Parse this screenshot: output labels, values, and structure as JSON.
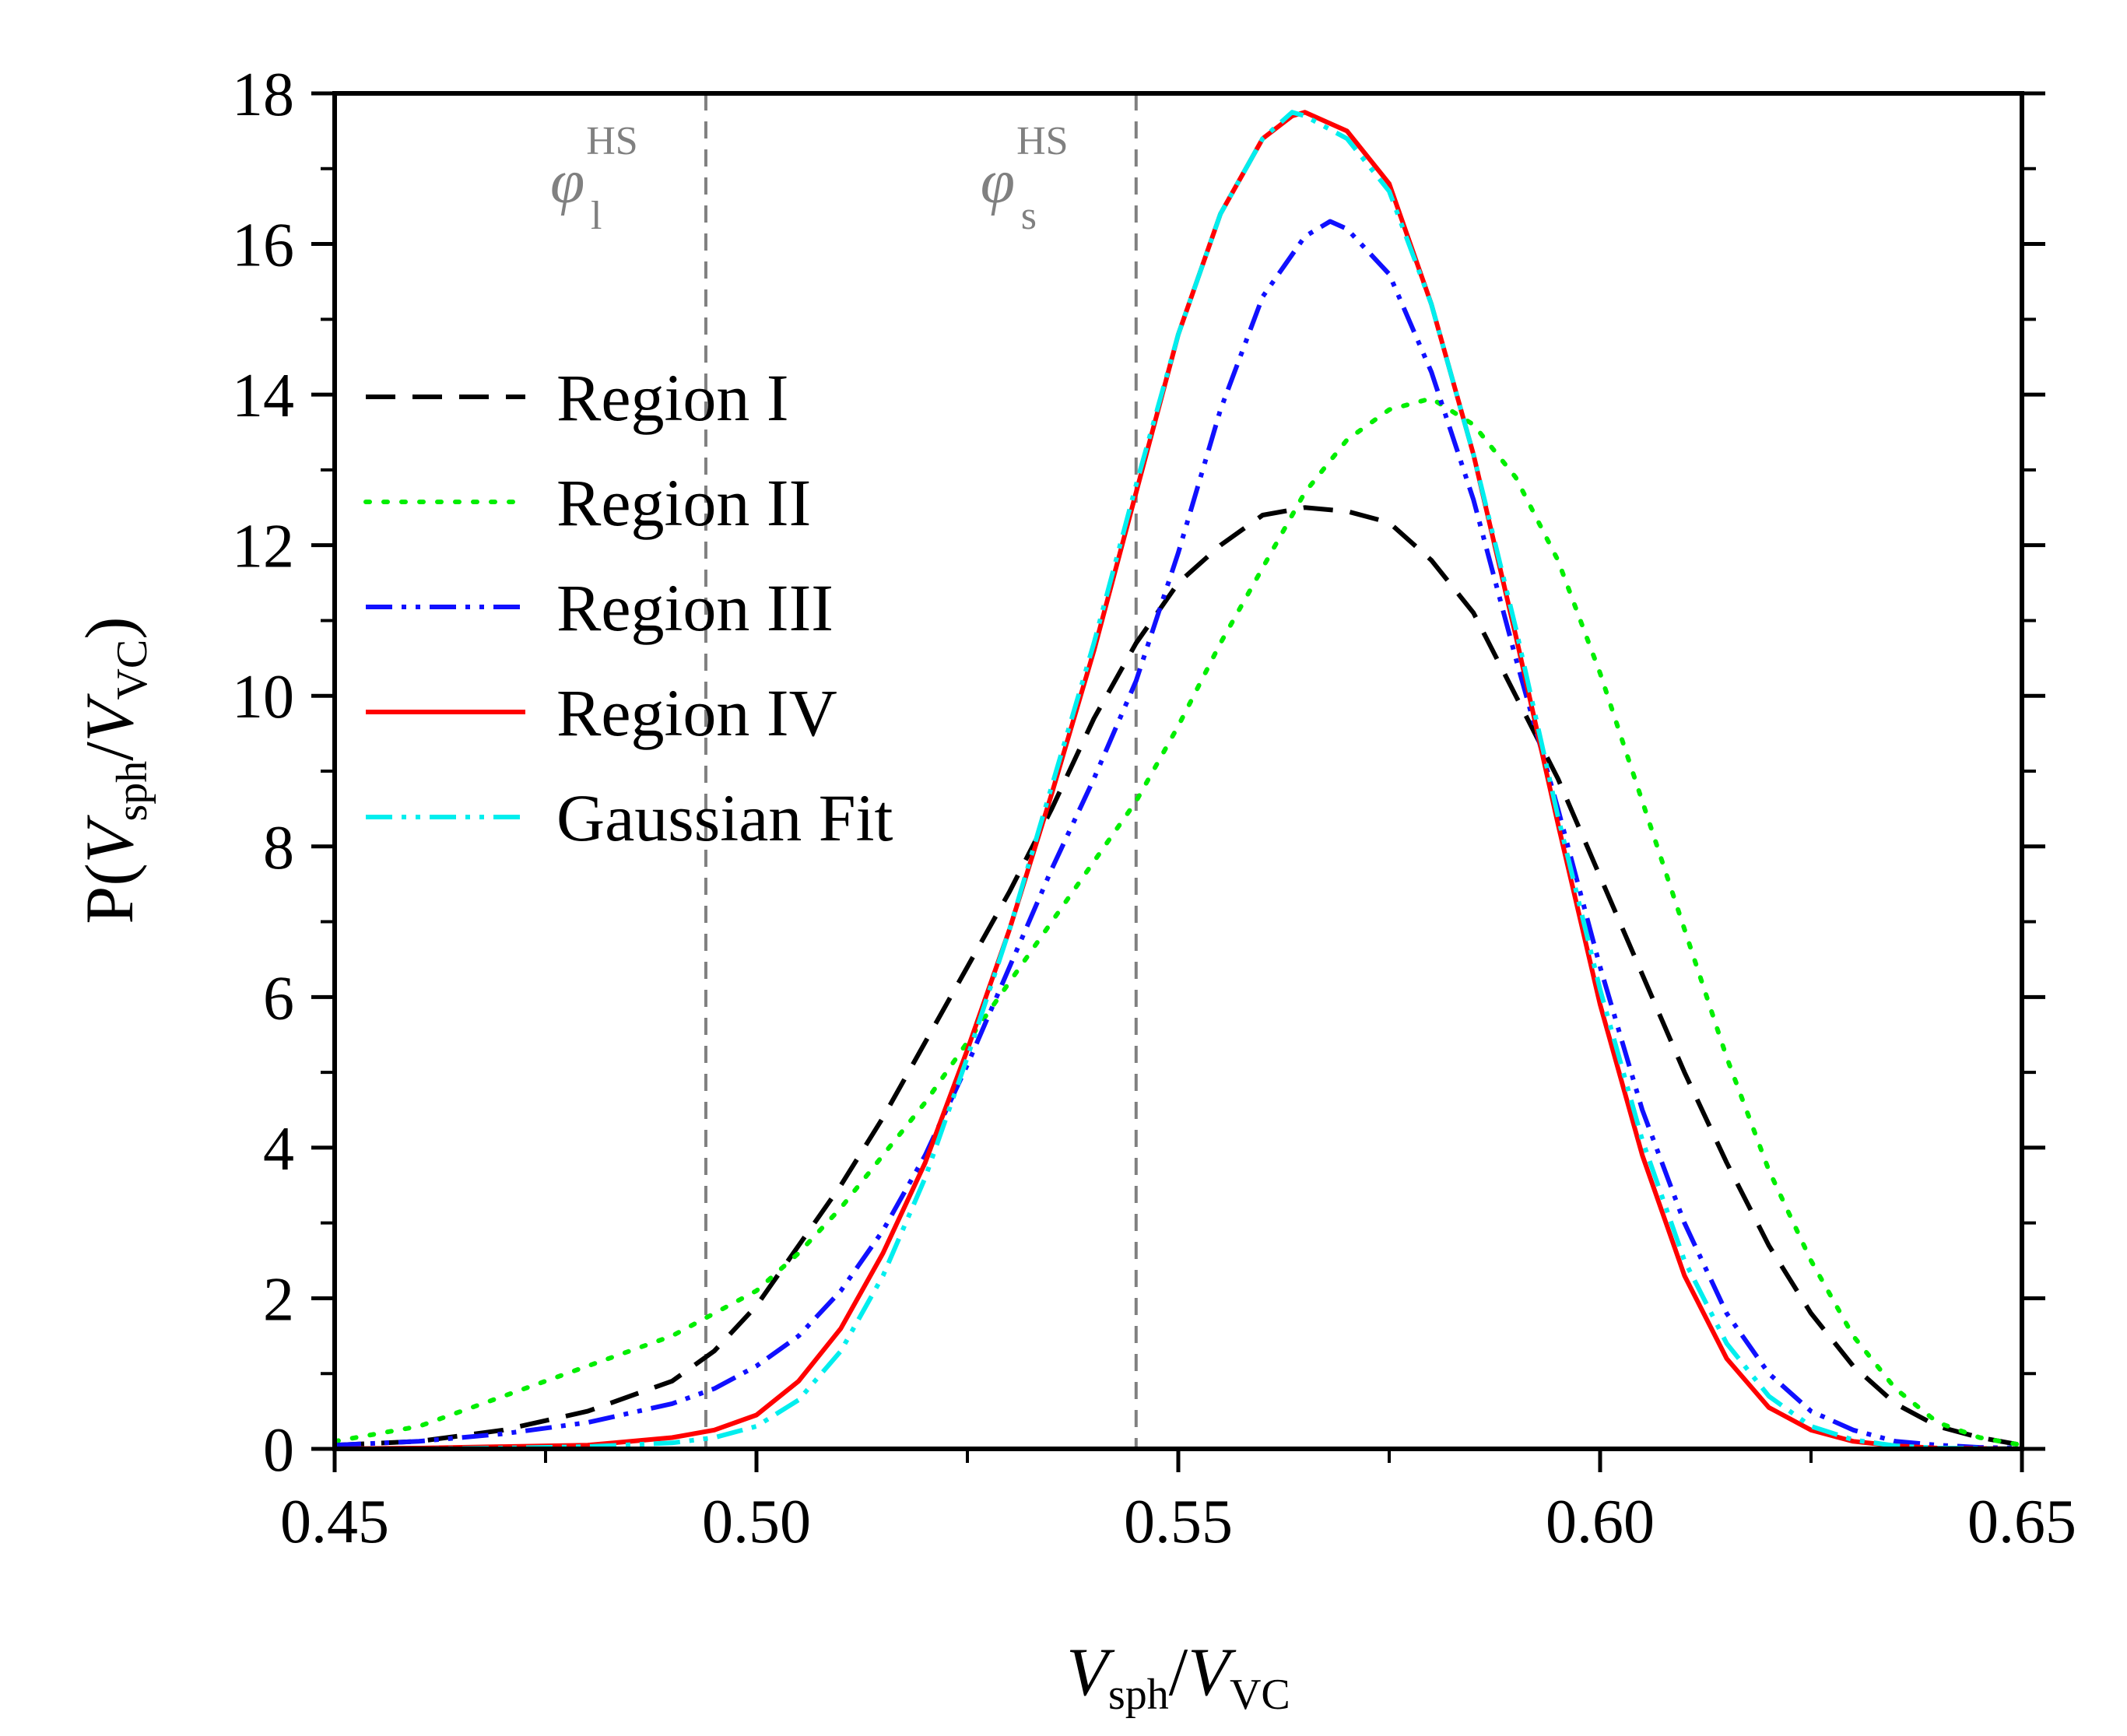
{
  "chart_data": {
    "type": "line",
    "title": "",
    "xlabel": {
      "main": "V",
      "main_sub": "sph",
      "sep": "/",
      "den": "V",
      "den_sub": "VC"
    },
    "ylabel": {
      "prefix": "P(",
      "main": "V",
      "main_sub": "sph",
      "sep": "/",
      "den": "V",
      "den_sub": "VC",
      "suffix": ")"
    },
    "xlim": [
      0.45,
      0.65
    ],
    "ylim": [
      0,
      18
    ],
    "xticks": [
      {
        "value": 0.45,
        "label": "0.45"
      },
      {
        "value": 0.5,
        "label": "0.50"
      },
      {
        "value": 0.55,
        "label": "0.55"
      },
      {
        "value": 0.6,
        "label": "0.60"
      },
      {
        "value": 0.65,
        "label": "0.65"
      }
    ],
    "yticks": [
      {
        "value": 0,
        "label": "0"
      },
      {
        "value": 2,
        "label": "2"
      },
      {
        "value": 4,
        "label": "4"
      },
      {
        "value": 6,
        "label": "6"
      },
      {
        "value": 8,
        "label": "8"
      },
      {
        "value": 10,
        "label": "10"
      },
      {
        "value": 12,
        "label": "12"
      },
      {
        "value": 14,
        "label": "14"
      },
      {
        "value": 16,
        "label": "16"
      },
      {
        "value": 18,
        "label": "18"
      }
    ],
    "reference_lines": [
      {
        "x": 0.494,
        "symbol": "φ",
        "sub": "l",
        "sup": "HS",
        "color": "#808080"
      },
      {
        "x": 0.545,
        "symbol": "φ",
        "sub": "s",
        "sup": "HS",
        "color": "#808080"
      }
    ],
    "legend": {
      "position": "upper-left"
    },
    "series": [
      {
        "name": "Region I",
        "color": "#000000",
        "style": "dash",
        "x": [
          0.45,
          0.46,
          0.47,
          0.48,
          0.49,
          0.495,
          0.5,
          0.505,
          0.51,
          0.515,
          0.52,
          0.525,
          0.53,
          0.535,
          0.54,
          0.545,
          0.55,
          0.555,
          0.56,
          0.565,
          0.57,
          0.575,
          0.58,
          0.585,
          0.59,
          0.595,
          0.6,
          0.605,
          0.61,
          0.615,
          0.62,
          0.625,
          0.63,
          0.635,
          0.64,
          0.645,
          0.65
        ],
        "y": [
          0.05,
          0.1,
          0.25,
          0.5,
          0.9,
          1.3,
          1.9,
          2.7,
          3.5,
          4.4,
          5.4,
          6.4,
          7.4,
          8.5,
          9.7,
          10.7,
          11.5,
          12.0,
          12.4,
          12.5,
          12.45,
          12.3,
          11.8,
          11.1,
          10.0,
          8.9,
          7.6,
          6.3,
          5.0,
          3.8,
          2.7,
          1.8,
          1.1,
          0.6,
          0.3,
          0.15,
          0.05
        ]
      },
      {
        "name": "Region II",
        "color": "#00ee00",
        "style": "dot",
        "x": [
          0.45,
          0.46,
          0.47,
          0.48,
          0.49,
          0.5,
          0.505,
          0.51,
          0.515,
          0.52,
          0.525,
          0.53,
          0.535,
          0.54,
          0.545,
          0.55,
          0.555,
          0.56,
          0.565,
          0.57,
          0.575,
          0.58,
          0.585,
          0.59,
          0.595,
          0.6,
          0.605,
          0.61,
          0.615,
          0.62,
          0.625,
          0.63,
          0.635,
          0.64,
          0.645,
          0.65
        ],
        "y": [
          0.1,
          0.3,
          0.7,
          1.1,
          1.5,
          2.1,
          2.6,
          3.2,
          3.9,
          4.6,
          5.4,
          6.2,
          7.0,
          7.8,
          8.6,
          9.6,
          10.7,
          11.7,
          12.7,
          13.4,
          13.8,
          13.95,
          13.6,
          12.9,
          11.8,
          10.3,
          8.6,
          6.9,
          5.2,
          3.7,
          2.5,
          1.5,
          0.8,
          0.35,
          0.15,
          0.05
        ]
      },
      {
        "name": "Region III",
        "color": "#1010ff",
        "style": "dashdotdot",
        "x": [
          0.45,
          0.46,
          0.47,
          0.48,
          0.49,
          0.495,
          0.5,
          0.505,
          0.51,
          0.515,
          0.52,
          0.525,
          0.53,
          0.535,
          0.54,
          0.545,
          0.55,
          0.555,
          0.56,
          0.565,
          0.568,
          0.57,
          0.575,
          0.58,
          0.585,
          0.59,
          0.595,
          0.6,
          0.605,
          0.61,
          0.615,
          0.62,
          0.625,
          0.63,
          0.635,
          0.64,
          0.645,
          0.65
        ],
        "y": [
          0.05,
          0.1,
          0.2,
          0.35,
          0.6,
          0.8,
          1.1,
          1.5,
          2.1,
          2.9,
          3.9,
          5.1,
          6.4,
          7.7,
          8.9,
          10.2,
          11.9,
          13.8,
          15.3,
          16.1,
          16.3,
          16.2,
          15.6,
          14.3,
          12.6,
          10.5,
          8.5,
          6.4,
          4.5,
          3.0,
          1.8,
          1.0,
          0.5,
          0.25,
          0.1,
          0.05,
          0.02,
          0.01
        ]
      },
      {
        "name": "Region IV",
        "color": "#ff0000",
        "style": "solid",
        "x": [
          0.45,
          0.46,
          0.47,
          0.48,
          0.49,
          0.495,
          0.5,
          0.505,
          0.51,
          0.515,
          0.52,
          0.525,
          0.53,
          0.535,
          0.54,
          0.545,
          0.55,
          0.555,
          0.56,
          0.5635,
          0.565,
          0.57,
          0.575,
          0.58,
          0.585,
          0.59,
          0.595,
          0.6,
          0.605,
          0.61,
          0.615,
          0.62,
          0.625,
          0.63,
          0.635,
          0.64,
          0.65
        ],
        "y": [
          0.0,
          0.01,
          0.03,
          0.05,
          0.15,
          0.25,
          0.45,
          0.9,
          1.6,
          2.6,
          3.8,
          5.3,
          6.9,
          8.7,
          10.6,
          12.7,
          14.8,
          16.4,
          17.4,
          17.7,
          17.75,
          17.5,
          16.8,
          15.2,
          13.2,
          10.8,
          8.3,
          5.9,
          3.9,
          2.3,
          1.2,
          0.55,
          0.25,
          0.1,
          0.04,
          0.01,
          0.0
        ]
      },
      {
        "name": "Gaussian Fit",
        "color": "#00eeee",
        "style": "dashdotdot",
        "x": [
          0.45,
          0.46,
          0.47,
          0.48,
          0.49,
          0.495,
          0.5,
          0.505,
          0.51,
          0.515,
          0.52,
          0.525,
          0.53,
          0.535,
          0.54,
          0.545,
          0.55,
          0.555,
          0.56,
          0.5635,
          0.565,
          0.57,
          0.575,
          0.58,
          0.585,
          0.59,
          0.595,
          0.6,
          0.605,
          0.61,
          0.615,
          0.62,
          0.625,
          0.63,
          0.635,
          0.64,
          0.65
        ],
        "y": [
          0.0,
          0.0,
          0.01,
          0.03,
          0.08,
          0.15,
          0.3,
          0.65,
          1.3,
          2.3,
          3.6,
          5.2,
          6.9,
          8.8,
          10.7,
          12.8,
          14.8,
          16.4,
          17.4,
          17.75,
          17.7,
          17.4,
          16.7,
          15.2,
          13.2,
          10.9,
          8.4,
          6.1,
          4.1,
          2.5,
          1.4,
          0.7,
          0.3,
          0.12,
          0.04,
          0.01,
          0.0
        ]
      }
    ]
  }
}
